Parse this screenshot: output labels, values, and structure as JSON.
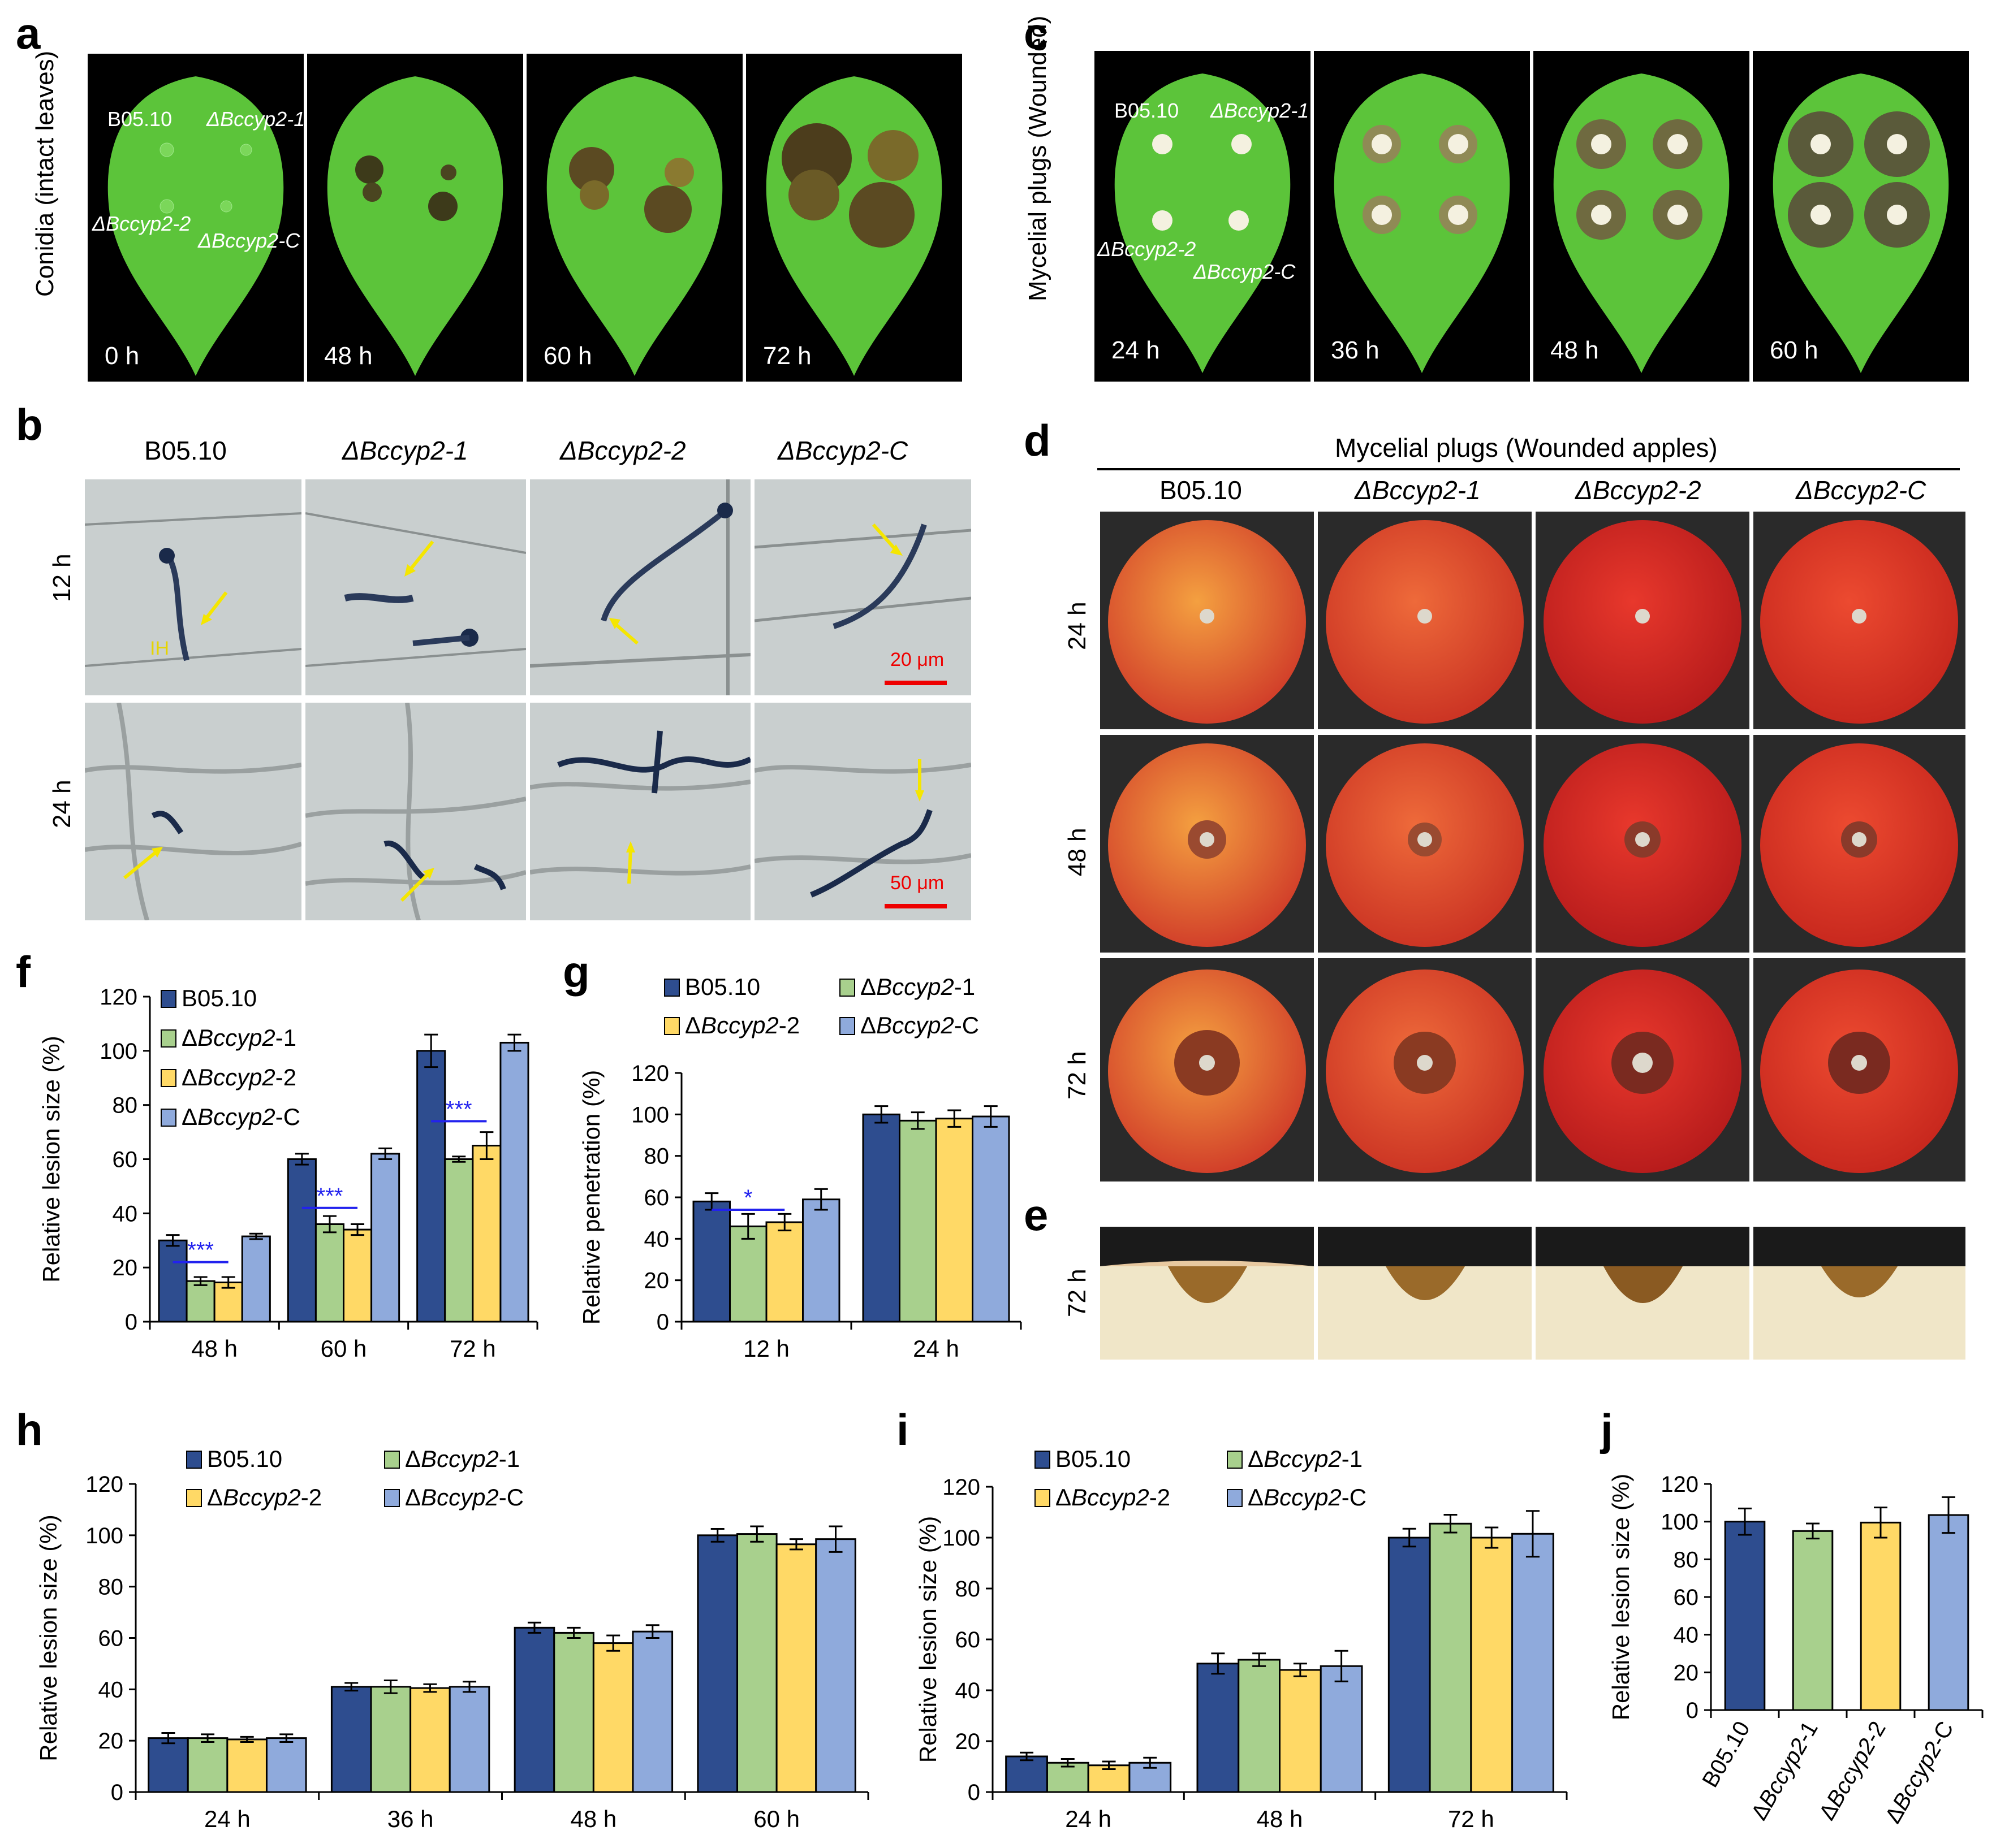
{
  "panels": {
    "a": {
      "label": "a",
      "side_label": "Conidia (intact leaves)",
      "leaf_labels": [
        "B05.10",
        "ΔBccyp2-1",
        "ΔBccyp2-2",
        "ΔBccyp2-C"
      ],
      "times": [
        "0 h",
        "48 h",
        "60 h",
        "72 h"
      ]
    },
    "b": {
      "label": "b",
      "columns": [
        "B05.10",
        "ΔBccyp2-1",
        "ΔBccyp2-2",
        "ΔBccyp2-C"
      ],
      "rows": [
        "12 h",
        "24 h"
      ],
      "ih_label": "IH",
      "scale_12h": "20 μm",
      "scale_24h": "50 μm"
    },
    "c": {
      "label": "c",
      "side_label": "Mycelial plugs (Wounded)",
      "leaf_labels": [
        "B05.10",
        "ΔBccyp2-1",
        "ΔBccyp2-2",
        "ΔBccyp2-C"
      ],
      "times": [
        "24 h",
        "36 h",
        "48 h",
        "60 h"
      ]
    },
    "d": {
      "label": "d",
      "title": "Mycelial plugs (Wounded apples)",
      "columns": [
        "B05.10",
        "ΔBccyp2-1",
        "ΔBccyp2-2",
        "ΔBccyp2-C"
      ],
      "rows": [
        "24 h",
        "48 h",
        "72 h"
      ]
    },
    "e": {
      "label": "e",
      "row": "72 h"
    },
    "f": {
      "label": "f"
    },
    "g": {
      "label": "g"
    },
    "h": {
      "label": "h"
    },
    "i": {
      "label": "i"
    },
    "j": {
      "label": "j"
    }
  },
  "colors": {
    "b0510": "#2e4d8f",
    "ko1": "#a8d08d",
    "ko2": "#ffd966",
    "comp": "#8faadc",
    "sig": "#2222ee",
    "leaf": "#5cc43a",
    "apple": "#e0402a"
  },
  "chart_data": [
    {
      "id": "f",
      "type": "bar",
      "title": "",
      "xlabel": "",
      "ylabel": "Relative lesion size (%)",
      "ylim": [
        0,
        120
      ],
      "yticks": [
        0,
        20,
        40,
        60,
        80,
        100,
        120
      ],
      "categories": [
        "48 h",
        "60 h",
        "72 h"
      ],
      "legend_position": "top-left, one column",
      "series": [
        {
          "name": "B05.10",
          "values": [
            30,
            60,
            100
          ],
          "errors": [
            2,
            2,
            6
          ]
        },
        {
          "name": "ΔBccyp2-1",
          "values": [
            15,
            36,
            60
          ],
          "errors": [
            1.5,
            3,
            1
          ]
        },
        {
          "name": "ΔBccyp2-2",
          "values": [
            14.5,
            34,
            65
          ],
          "errors": [
            2,
            2,
            5
          ]
        },
        {
          "name": "ΔBccyp2-C",
          "values": [
            31.5,
            62,
            103
          ],
          "errors": [
            1,
            2,
            3
          ]
        }
      ],
      "significance": [
        {
          "category": "48 h",
          "label": "***",
          "y": 22
        },
        {
          "category": "60 h",
          "label": "***",
          "y": 42
        },
        {
          "category": "72 h",
          "label": "***",
          "y": 74
        }
      ]
    },
    {
      "id": "g",
      "type": "bar",
      "title": "",
      "xlabel": "",
      "ylabel": "Relative penetration (%)",
      "ylim": [
        0,
        120
      ],
      "yticks": [
        0,
        20,
        40,
        60,
        80,
        100,
        120
      ],
      "categories": [
        "12 h",
        "24 h"
      ],
      "legend_position": "top, two columns",
      "series": [
        {
          "name": "B05.10",
          "values": [
            58,
            100
          ],
          "errors": [
            4,
            4
          ]
        },
        {
          "name": "ΔBccyp2-1",
          "values": [
            46,
            97
          ],
          "errors": [
            6,
            4
          ]
        },
        {
          "name": "ΔBccyp2-2",
          "values": [
            48,
            98
          ],
          "errors": [
            4,
            4
          ]
        },
        {
          "name": "ΔBccyp2-C",
          "values": [
            59,
            99
          ],
          "errors": [
            5,
            5
          ]
        }
      ],
      "significance": [
        {
          "category": "12 h",
          "label": "*",
          "y": 54
        }
      ]
    },
    {
      "id": "h",
      "type": "bar",
      "title": "",
      "xlabel": "",
      "ylabel": "Relative lesion size (%)",
      "ylim": [
        0,
        120
      ],
      "yticks": [
        0,
        20,
        40,
        60,
        80,
        100,
        120
      ],
      "categories": [
        "24 h",
        "36 h",
        "48 h",
        "60 h"
      ],
      "legend_position": "top-left, two columns",
      "series": [
        {
          "name": "B05.10",
          "values": [
            21,
            41,
            64,
            100
          ],
          "errors": [
            2,
            1.5,
            2,
            2.5
          ]
        },
        {
          "name": "ΔBccyp2-1",
          "values": [
            21,
            41,
            62,
            100.5
          ],
          "errors": [
            1.5,
            2.5,
            2,
            3
          ]
        },
        {
          "name": "ΔBccyp2-2",
          "values": [
            20.5,
            40.5,
            58,
            96.5
          ],
          "errors": [
            1,
            1.5,
            3,
            2
          ]
        },
        {
          "name": "ΔBccyp2-C",
          "values": [
            21,
            41,
            62.5,
            98.5
          ],
          "errors": [
            1.5,
            2,
            2.5,
            5
          ]
        }
      ]
    },
    {
      "id": "i",
      "type": "bar",
      "title": "",
      "xlabel": "",
      "ylabel": "Relative lesion size (%)",
      "ylim": [
        0,
        120
      ],
      "yticks": [
        0,
        20,
        40,
        60,
        80,
        100,
        120
      ],
      "categories": [
        "24 h",
        "48 h",
        "72 h"
      ],
      "legend_position": "top-left, two columns",
      "series": [
        {
          "name": "B05.10",
          "values": [
            14,
            50.5,
            100
          ],
          "errors": [
            1.5,
            4,
            3.5
          ]
        },
        {
          "name": "ΔBccyp2-1",
          "values": [
            11.5,
            52,
            105.5
          ],
          "errors": [
            1.5,
            2.5,
            3.5
          ]
        },
        {
          "name": "ΔBccyp2-2",
          "values": [
            10.5,
            48,
            100
          ],
          "errors": [
            1.5,
            2.5,
            4
          ]
        },
        {
          "name": "ΔBccyp2-C",
          "values": [
            11.5,
            49.5,
            101.5
          ],
          "errors": [
            2,
            6,
            9
          ]
        }
      ]
    },
    {
      "id": "j",
      "type": "bar",
      "title": "",
      "xlabel": "",
      "ylabel": "Relative lesion size (%)",
      "ylim": [
        0,
        120
      ],
      "yticks": [
        0,
        20,
        40,
        60,
        80,
        100,
        120
      ],
      "categories": [
        "B05.10",
        "ΔBccyp2-1",
        "ΔBccyp2-2",
        "ΔBccyp2-C"
      ],
      "legend_position": "none",
      "values": [
        100,
        95,
        99.5,
        103.5
      ],
      "errors": [
        7,
        4,
        8,
        9.5
      ]
    }
  ]
}
